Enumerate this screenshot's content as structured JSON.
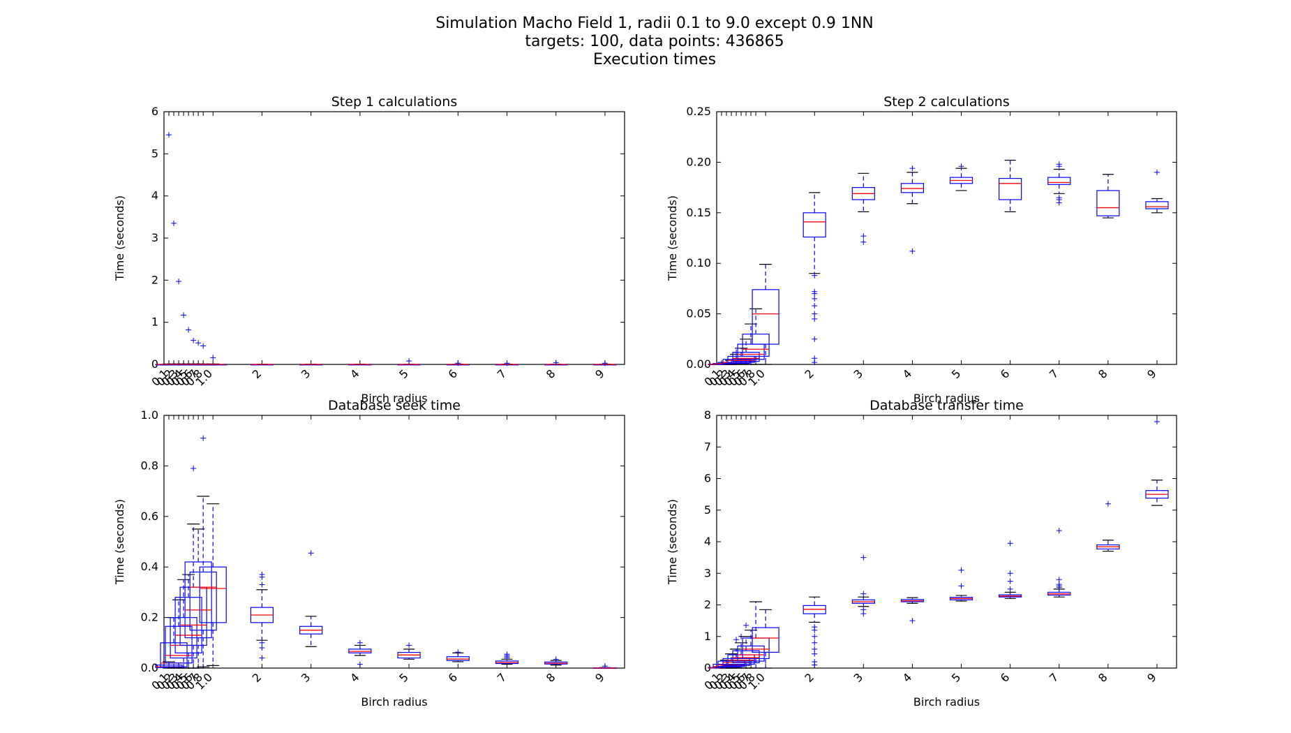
{
  "figure": {
    "title_lines": [
      "Simulation Macho Field 1, radii 0.1 to 9.0 except 0.9 1NN",
      "targets: 100,   data points: 436865",
      "Execution times"
    ]
  },
  "colors": {
    "box": "#0000ff",
    "median": "#ff0000",
    "flier": "#0000ff",
    "axes": "#000000"
  },
  "chart_data": [
    {
      "type": "boxplot",
      "title": "Step 1 calculations",
      "xlabel": "Birch radius",
      "ylabel": "Time (seconds)",
      "ylim": [
        0,
        6
      ],
      "yticks": [
        0,
        1,
        2,
        3,
        4,
        5,
        6
      ],
      "ytick_labels": [
        "0",
        "1",
        "2",
        "3",
        "4",
        "5",
        "6"
      ],
      "xlim": [
        0,
        9.4
      ],
      "categories": [
        0.1,
        0.2,
        0.3,
        0.4,
        0.5,
        0.6,
        0.7,
        0.8,
        1.0,
        2,
        3,
        4,
        5,
        6,
        7,
        8,
        9
      ],
      "category_labels": [
        "0.1",
        "0.2",
        "0.3",
        "0.4",
        "0.5",
        "0.6",
        "0.7",
        "0.8",
        "1.0",
        "2",
        "3",
        "4",
        "5",
        "6",
        "7",
        "8",
        "9"
      ],
      "boxes": [
        {
          "x": 0.1,
          "wl": 0,
          "q1": 0,
          "med": 0,
          "q3": 0,
          "wh": 0.01,
          "fliers": [
            5.45
          ]
        },
        {
          "x": 0.2,
          "wl": 0,
          "q1": 0,
          "med": 0,
          "q3": 0,
          "wh": 0.01,
          "fliers": [
            3.35
          ]
        },
        {
          "x": 0.3,
          "wl": 0,
          "q1": 0,
          "med": 0,
          "q3": 0,
          "wh": 0.01,
          "fliers": [
            1.97
          ]
        },
        {
          "x": 0.4,
          "wl": 0,
          "q1": 0,
          "med": 0,
          "q3": 0,
          "wh": 0.01,
          "fliers": [
            1.17
          ]
        },
        {
          "x": 0.5,
          "wl": 0,
          "q1": 0,
          "med": 0,
          "q3": 0,
          "wh": 0.01,
          "fliers": [
            0.82
          ]
        },
        {
          "x": 0.6,
          "wl": 0,
          "q1": 0,
          "med": 0,
          "q3": 0,
          "wh": 0.01,
          "fliers": [
            0.57
          ]
        },
        {
          "x": 0.7,
          "wl": 0,
          "q1": 0,
          "med": 0,
          "q3": 0,
          "wh": 0.01,
          "fliers": [
            0.51
          ]
        },
        {
          "x": 0.8,
          "wl": 0,
          "q1": 0,
          "med": 0,
          "q3": 0,
          "wh": 0.01,
          "fliers": [
            0.44
          ]
        },
        {
          "x": 1.0,
          "wl": 0,
          "q1": 0,
          "med": 0,
          "q3": 0,
          "wh": 0.01,
          "fliers": [
            0.16
          ]
        },
        {
          "x": 2,
          "wl": 0,
          "q1": 0,
          "med": 0,
          "q3": 0,
          "wh": 0.005,
          "fliers": []
        },
        {
          "x": 3,
          "wl": 0,
          "q1": 0,
          "med": 0,
          "q3": 0,
          "wh": 0.005,
          "fliers": []
        },
        {
          "x": 4,
          "wl": 0,
          "q1": 0,
          "med": 0,
          "q3": 0,
          "wh": 0.005,
          "fliers": []
        },
        {
          "x": 5,
          "wl": 0,
          "q1": 0,
          "med": 0,
          "q3": 0,
          "wh": 0.005,
          "fliers": [
            0.08
          ]
        },
        {
          "x": 6,
          "wl": 0,
          "q1": 0,
          "med": 0,
          "q3": 0,
          "wh": 0.005,
          "fliers": [
            0.03
          ]
        },
        {
          "x": 7,
          "wl": 0,
          "q1": 0,
          "med": 0,
          "q3": 0,
          "wh": 0.005,
          "fliers": [
            0.03
          ]
        },
        {
          "x": 8,
          "wl": 0,
          "q1": 0,
          "med": 0,
          "q3": 0,
          "wh": 0.005,
          "fliers": [
            0.04
          ]
        },
        {
          "x": 9,
          "wl": 0,
          "q1": 0,
          "med": 0,
          "q3": 0,
          "wh": 0.005,
          "fliers": [
            0.03
          ]
        }
      ]
    },
    {
      "type": "boxplot",
      "title": "Step 2 calculations",
      "xlabel": "Birch radius",
      "ylabel": "Time (seconds)",
      "ylim": [
        0,
        0.25
      ],
      "yticks": [
        0,
        0.05,
        0.1,
        0.15,
        0.2,
        0.25
      ],
      "ytick_labels": [
        "0.00",
        "0.05",
        "0.10",
        "0.15",
        "0.20",
        "0.25"
      ],
      "xlim": [
        0,
        9.4
      ],
      "categories": [
        0.1,
        0.2,
        0.3,
        0.4,
        0.5,
        0.6,
        0.7,
        0.8,
        1.0,
        2,
        3,
        4,
        5,
        6,
        7,
        8,
        9
      ],
      "category_labels": [
        "0.1",
        "0.2",
        "0.3",
        "0.4",
        "0.5",
        "0.6",
        "0.7",
        "0.8",
        "1.0",
        "2",
        "3",
        "4",
        "5",
        "6",
        "7",
        "8",
        "9"
      ],
      "boxes": [
        {
          "x": 0.1,
          "wl": 0,
          "q1": 0,
          "med": 0,
          "q3": 0.0003,
          "wh": 0.0008,
          "fliers": []
        },
        {
          "x": 0.2,
          "wl": 0,
          "q1": 0.0002,
          "med": 0.0005,
          "q3": 0.001,
          "wh": 0.002,
          "fliers": []
        },
        {
          "x": 0.3,
          "wl": 0,
          "q1": 0.0005,
          "med": 0.001,
          "q3": 0.002,
          "wh": 0.004,
          "fliers": []
        },
        {
          "x": 0.4,
          "wl": 0,
          "q1": 0.001,
          "med": 0.002,
          "q3": 0.005,
          "wh": 0.01,
          "fliers": [
            0.012
          ]
        },
        {
          "x": 0.5,
          "wl": 0,
          "q1": 0.002,
          "med": 0.004,
          "q3": 0.008,
          "wh": 0.016,
          "fliers": []
        },
        {
          "x": 0.6,
          "wl": 0,
          "q1": 0.003,
          "med": 0.006,
          "q3": 0.012,
          "wh": 0.025,
          "fliers": []
        },
        {
          "x": 0.7,
          "wl": 0,
          "q1": 0.005,
          "med": 0.01,
          "q3": 0.02,
          "wh": 0.04,
          "fliers": []
        },
        {
          "x": 0.8,
          "wl": 0,
          "q1": 0.008,
          "med": 0.015,
          "q3": 0.03,
          "wh": 0.055,
          "fliers": []
        },
        {
          "x": 1.0,
          "wl": 0,
          "q1": 0.02,
          "med": 0.05,
          "q3": 0.074,
          "wh": 0.099,
          "fliers": []
        },
        {
          "x": 2,
          "wl": 0.09,
          "q1": 0.126,
          "med": 0.141,
          "q3": 0.15,
          "wh": 0.17,
          "fliers": [
            0.088,
            0.072,
            0.07,
            0.065,
            0.058,
            0.05,
            0.045,
            0.025,
            0.006,
            0.002
          ]
        },
        {
          "x": 3,
          "wl": 0.151,
          "q1": 0.163,
          "med": 0.169,
          "q3": 0.175,
          "wh": 0.189,
          "fliers": [
            0.127,
            0.121
          ]
        },
        {
          "x": 4,
          "wl": 0.159,
          "q1": 0.17,
          "med": 0.174,
          "q3": 0.179,
          "wh": 0.19,
          "fliers": [
            0.112,
            0.194
          ]
        },
        {
          "x": 5,
          "wl": 0.172,
          "q1": 0.179,
          "med": 0.182,
          "q3": 0.185,
          "wh": 0.194,
          "fliers": [
            0.196
          ]
        },
        {
          "x": 6,
          "wl": 0.151,
          "q1": 0.163,
          "med": 0.179,
          "q3": 0.184,
          "wh": 0.202,
          "fliers": []
        },
        {
          "x": 7,
          "wl": 0.169,
          "q1": 0.178,
          "med": 0.18,
          "q3": 0.185,
          "wh": 0.193,
          "fliers": [
            0.16,
            0.163,
            0.165,
            0.196,
            0.198
          ]
        },
        {
          "x": 8,
          "wl": 0.145,
          "q1": 0.147,
          "med": 0.155,
          "q3": 0.172,
          "wh": 0.188,
          "fliers": []
        },
        {
          "x": 9,
          "wl": 0.15,
          "q1": 0.154,
          "med": 0.156,
          "q3": 0.161,
          "wh": 0.164,
          "fliers": [
            0.19
          ]
        }
      ]
    },
    {
      "type": "boxplot",
      "title": "Database seek time",
      "xlabel": "Birch radius",
      "ylabel": "Time (seconds)",
      "ylim": [
        0,
        1.0
      ],
      "yticks": [
        0,
        0.2,
        0.4,
        0.6,
        0.8,
        1.0
      ],
      "ytick_labels": [
        "0.0",
        "0.2",
        "0.4",
        "0.6",
        "0.8",
        "1.0"
      ],
      "xlim": [
        0,
        9.4
      ],
      "categories": [
        0.1,
        0.2,
        0.3,
        0.4,
        0.5,
        0.6,
        0.7,
        0.8,
        1.0,
        2,
        3,
        4,
        5,
        6,
        7,
        8,
        9
      ],
      "category_labels": [
        "0.1",
        "0.2",
        "0.3",
        "0.4",
        "0.5",
        "0.6",
        "0.7",
        "0.8",
        "1.0",
        "2",
        "3",
        "4",
        "5",
        "6",
        "7",
        "8",
        "9"
      ],
      "boxes": [
        {
          "x": 0.1,
          "wl": 0,
          "q1": 0.002,
          "med": 0.005,
          "q3": 0.012,
          "wh": 0.025,
          "fliers": []
        },
        {
          "x": 0.2,
          "wl": 0,
          "q1": 0.005,
          "med": 0.02,
          "q3": 0.1,
          "wh": 0.2,
          "fliers": []
        },
        {
          "x": 0.3,
          "wl": 0,
          "q1": 0.02,
          "med": 0.05,
          "q3": 0.165,
          "wh": 0.27,
          "fliers": []
        },
        {
          "x": 0.4,
          "wl": 0,
          "q1": 0.04,
          "med": 0.09,
          "q3": 0.2,
          "wh": 0.35,
          "fliers": []
        },
        {
          "x": 0.5,
          "wl": 0,
          "q1": 0.06,
          "med": 0.13,
          "q3": 0.28,
          "wh": 0.37,
          "fliers": []
        },
        {
          "x": 0.6,
          "wl": 0,
          "q1": 0.09,
          "med": 0.17,
          "q3": 0.32,
          "wh": 0.57,
          "fliers": [
            0.79
          ]
        },
        {
          "x": 0.7,
          "wl": 0,
          "q1": 0.12,
          "med": 0.23,
          "q3": 0.42,
          "wh": 0.55,
          "fliers": []
        },
        {
          "x": 0.8,
          "wl": 0.005,
          "q1": 0.15,
          "med": 0.32,
          "q3": 0.38,
          "wh": 0.68,
          "fliers": [
            0.91
          ]
        },
        {
          "x": 1.0,
          "wl": 0.01,
          "q1": 0.18,
          "med": 0.315,
          "q3": 0.4,
          "wh": 0.65,
          "fliers": []
        },
        {
          "x": 2,
          "wl": 0.11,
          "q1": 0.18,
          "med": 0.21,
          "q3": 0.24,
          "wh": 0.31,
          "fliers": [
            0.37,
            0.36,
            0.33,
            0.1,
            0.08,
            0.04
          ]
        },
        {
          "x": 3,
          "wl": 0.085,
          "q1": 0.135,
          "med": 0.15,
          "q3": 0.165,
          "wh": 0.205,
          "fliers": [
            0.455
          ]
        },
        {
          "x": 4,
          "wl": 0.05,
          "q1": 0.06,
          "med": 0.066,
          "q3": 0.075,
          "wh": 0.09,
          "fliers": [
            0.1,
            0.015
          ]
        },
        {
          "x": 5,
          "wl": 0.035,
          "q1": 0.04,
          "med": 0.052,
          "q3": 0.062,
          "wh": 0.075,
          "fliers": [
            0.09
          ]
        },
        {
          "x": 6,
          "wl": 0.025,
          "q1": 0.03,
          "med": 0.036,
          "q3": 0.045,
          "wh": 0.06,
          "fliers": [
            0.063
          ]
        },
        {
          "x": 7,
          "wl": 0.015,
          "q1": 0.018,
          "med": 0.022,
          "q3": 0.028,
          "wh": 0.035,
          "fliers": [
            0.04,
            0.045,
            0.05,
            0.055
          ]
        },
        {
          "x": 8,
          "wl": 0.012,
          "q1": 0.016,
          "med": 0.019,
          "q3": 0.024,
          "wh": 0.03,
          "fliers": [
            0.035
          ]
        },
        {
          "x": 9,
          "wl": 0,
          "q1": 0,
          "med": 0,
          "q3": 0.001,
          "wh": 0.002,
          "fliers": [
            0.008
          ]
        }
      ]
    },
    {
      "type": "boxplot",
      "title": "Database transfer time",
      "xlabel": "Birch radius",
      "ylabel": "Time (seconds)",
      "ylim": [
        0,
        8
      ],
      "yticks": [
        0,
        1,
        2,
        3,
        4,
        5,
        6,
        7,
        8
      ],
      "ytick_labels": [
        "0",
        "1",
        "2",
        "3",
        "4",
        "5",
        "6",
        "7",
        "8"
      ],
      "xlim": [
        0,
        9.4
      ],
      "categories": [
        0.1,
        0.2,
        0.3,
        0.4,
        0.5,
        0.6,
        0.7,
        0.8,
        1.0,
        2,
        3,
        4,
        5,
        6,
        7,
        8,
        9
      ],
      "category_labels": [
        "0.1",
        "0.2",
        "0.3",
        "0.4",
        "0.5",
        "0.6",
        "0.7",
        "0.8",
        "1.0",
        "2",
        "3",
        "4",
        "5",
        "6",
        "7",
        "8",
        "9"
      ],
      "boxes": [
        {
          "x": 0.1,
          "wl": 0,
          "q1": 0,
          "med": 0.01,
          "q3": 0.02,
          "wh": 0.05,
          "fliers": []
        },
        {
          "x": 0.2,
          "wl": 0,
          "q1": 0.02,
          "med": 0.05,
          "q3": 0.12,
          "wh": 0.25,
          "fliers": []
        },
        {
          "x": 0.3,
          "wl": 0,
          "q1": 0.05,
          "med": 0.1,
          "q3": 0.22,
          "wh": 0.45,
          "fliers": []
        },
        {
          "x": 0.4,
          "wl": 0,
          "q1": 0.08,
          "med": 0.18,
          "q3": 0.3,
          "wh": 0.6,
          "fliers": [
            0.9
          ]
        },
        {
          "x": 0.5,
          "wl": 0,
          "q1": 0.12,
          "med": 0.25,
          "q3": 0.42,
          "wh": 0.8,
          "fliers": [
            1.0
          ]
        },
        {
          "x": 0.6,
          "wl": 0,
          "q1": 0.17,
          "med": 0.33,
          "q3": 0.55,
          "wh": 1.0,
          "fliers": [
            1.35
          ]
        },
        {
          "x": 0.7,
          "wl": 0,
          "q1": 0.22,
          "med": 0.42,
          "q3": 0.7,
          "wh": 1.2,
          "fliers": []
        },
        {
          "x": 0.8,
          "wl": 0,
          "q1": 0.3,
          "med": 0.6,
          "q3": 0.95,
          "wh": 2.1,
          "fliers": []
        },
        {
          "x": 1.0,
          "wl": 0,
          "q1": 0.5,
          "med": 0.95,
          "q3": 1.28,
          "wh": 1.85,
          "fliers": []
        },
        {
          "x": 2,
          "wl": 1.45,
          "q1": 1.72,
          "med": 1.86,
          "q3": 1.98,
          "wh": 2.25,
          "fliers": [
            1.3,
            1.2,
            1.0,
            0.8,
            0.6,
            0.45,
            0.2,
            0.1
          ]
        },
        {
          "x": 3,
          "wl": 1.95,
          "q1": 2.05,
          "med": 2.1,
          "q3": 2.16,
          "wh": 2.25,
          "fliers": [
            3.5,
            2.35,
            1.85,
            1.72
          ]
        },
        {
          "x": 4,
          "wl": 2.05,
          "q1": 2.1,
          "med": 2.13,
          "q3": 2.17,
          "wh": 2.23,
          "fliers": [
            1.5
          ]
        },
        {
          "x": 5,
          "wl": 2.12,
          "q1": 2.16,
          "med": 2.2,
          "q3": 2.24,
          "wh": 2.3,
          "fliers": [
            3.1,
            2.6
          ]
        },
        {
          "x": 6,
          "wl": 2.2,
          "q1": 2.25,
          "med": 2.28,
          "q3": 2.32,
          "wh": 2.4,
          "fliers": [
            3.95,
            3.0,
            2.75,
            2.5
          ]
        },
        {
          "x": 7,
          "wl": 2.25,
          "q1": 2.31,
          "med": 2.35,
          "q3": 2.4,
          "wh": 2.5,
          "fliers": [
            4.35,
            2.8,
            2.65,
            2.6,
            2.55
          ]
        },
        {
          "x": 8,
          "wl": 3.7,
          "q1": 3.77,
          "med": 3.84,
          "q3": 3.9,
          "wh": 4.05,
          "fliers": [
            5.2
          ]
        },
        {
          "x": 9,
          "wl": 5.15,
          "q1": 5.38,
          "med": 5.5,
          "q3": 5.62,
          "wh": 5.95,
          "fliers": [
            7.8
          ]
        }
      ]
    }
  ]
}
